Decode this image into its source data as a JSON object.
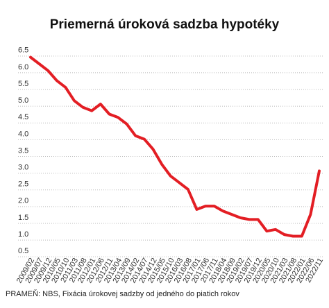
{
  "chart_data": {
    "type": "line",
    "title": "Priemerná úroková sadzba hypotéky",
    "source": "PRAMEŇ: NBS, Fixácia úrokovej sadzby od jedného do piatich rokov",
    "categories": [
      "2009/02",
      "2009/07",
      "2009/12",
      "2010/05",
      "2010/10",
      "2011/03",
      "2011/08",
      "2012/01",
      "2012/06",
      "2012/11",
      "2013/04",
      "2013/09",
      "2014/02",
      "2014/07",
      "2014/12",
      "2015/05",
      "2015/10",
      "2016/03",
      "2016/08",
      "2017/01",
      "2017/06",
      "2017/11",
      "2018/04",
      "2018/09",
      "2019/02",
      "2019/07",
      "2019/12",
      "2020/05",
      "2020/10",
      "2021/03",
      "2021/08",
      "2022/01",
      "2022/06",
      "2022/11"
    ],
    "series": [
      {
        "color": "#e31e24",
        "values": [
          6.3,
          6.1,
          5.9,
          5.6,
          5.4,
          5.0,
          4.8,
          4.7,
          4.9,
          4.6,
          4.5,
          4.3,
          3.95,
          3.85,
          3.55,
          3.1,
          2.75,
          2.55,
          2.35,
          1.75,
          1.85,
          1.85,
          1.7,
          1.6,
          1.5,
          1.45,
          1.45,
          1.1,
          1.15,
          1.0,
          0.95,
          0.95,
          1.6,
          2.9
        ]
      }
    ],
    "ylim": [
      0.4,
      6.6
    ],
    "yticks": [
      6.5,
      {
        "value": 6,
        "label": "6.0"
      },
      5.5,
      {
        "value": 5,
        "label": "5.0"
      },
      4.5,
      {
        "value": 4,
        "label": "4.0"
      },
      3.5,
      {
        "value": 3,
        "label": "3.0"
      },
      2.5,
      {
        "value": 2,
        "label": "2.0"
      },
      1.5,
      {
        "value": 1,
        "label": "1.0"
      },
      0.5
    ],
    "grid": true
  }
}
